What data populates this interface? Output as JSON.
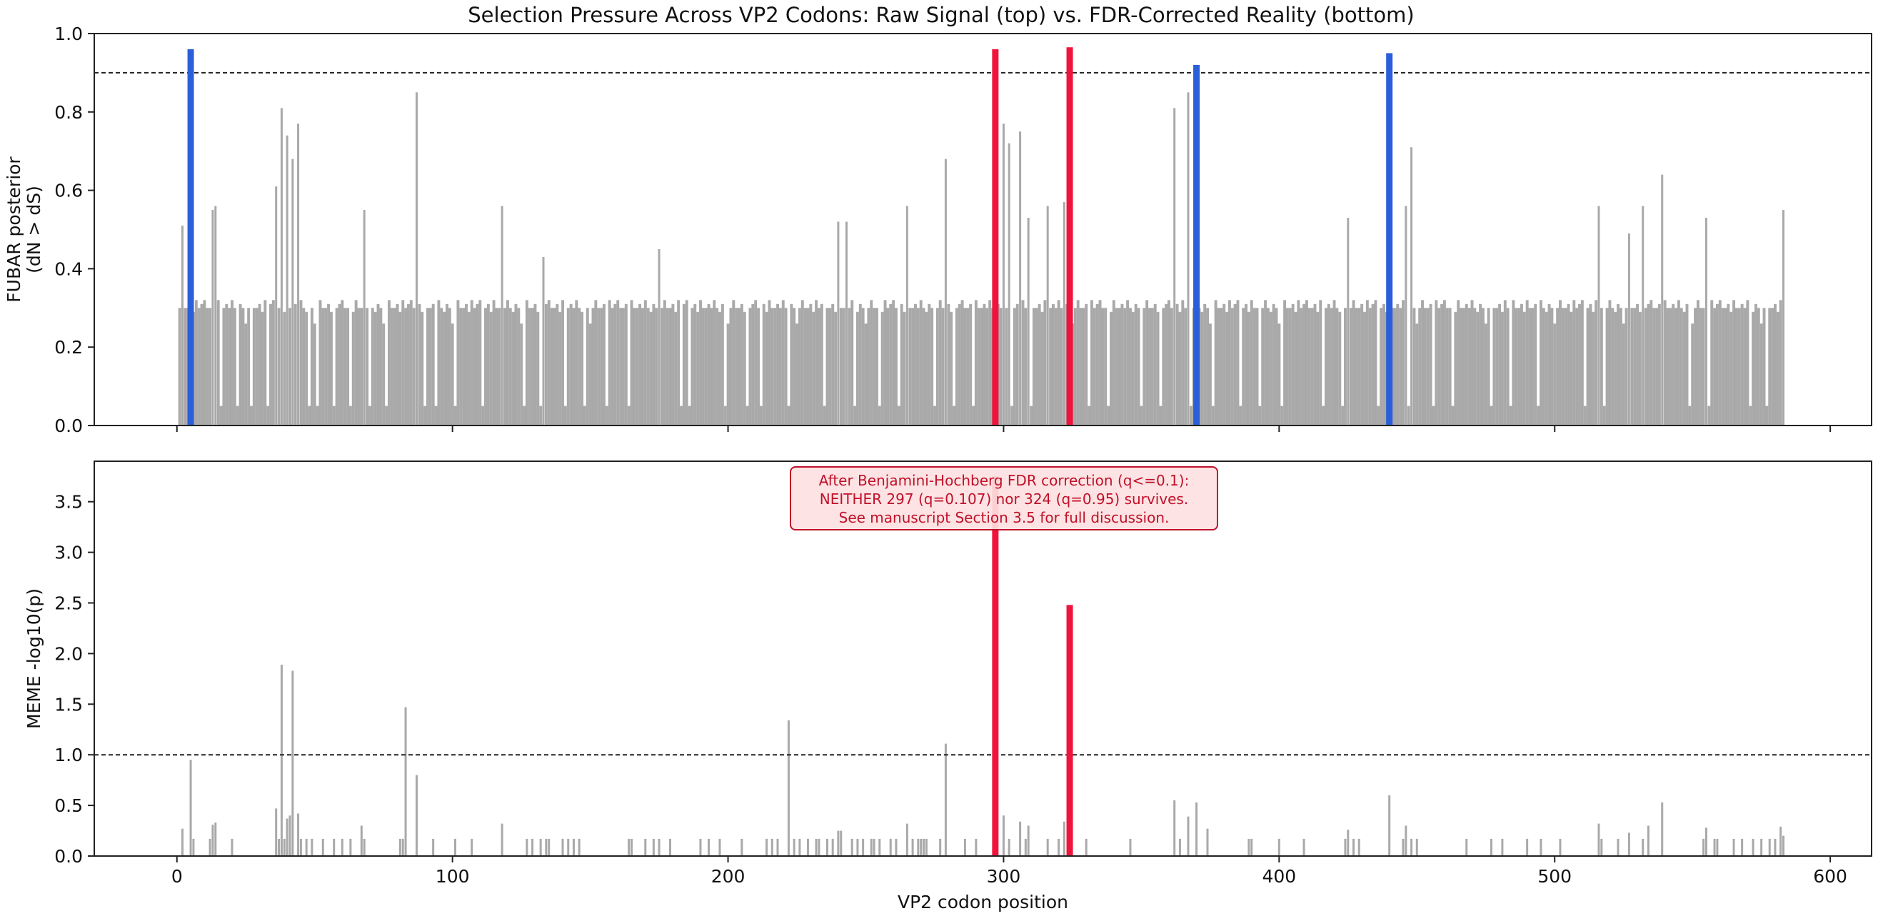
{
  "title": "Selection Pressure Across VP2 Codons: Raw Signal (top) vs. FDR-Corrected Reality (bottom)",
  "colors": {
    "background_bar": "#a9a9a9",
    "highlight_red": "#f0143c",
    "highlight_blue": "#2b5fd9",
    "threshold_line": "#222222",
    "annotation_text": "#c0102a",
    "annotation_fill": "#fde1e1",
    "annotation_edge": "#c0102a"
  },
  "chart_data": [
    {
      "type": "bar",
      "panel": "top",
      "ylabel_lines": [
        "FUBAR posterior",
        "(dN > dS)"
      ],
      "xlabel": "",
      "xlim": [
        -30,
        615
      ],
      "ylim": [
        0,
        1.0
      ],
      "xticks": [
        0,
        100,
        200,
        300,
        400,
        500,
        600
      ],
      "yticks": [
        0.0,
        0.2,
        0.4,
        0.6,
        0.8,
        1.0
      ],
      "ytick_labels": [
        "0.0",
        "0.2",
        "0.4",
        "0.6",
        "0.8",
        "1.0"
      ],
      "threshold": 0.9,
      "background": {
        "x_range": [
          1,
          583
        ],
        "baseline": [
          0.26,
          0.3,
          0.32,
          0.3,
          0.3,
          0.31,
          0.29,
          0.32,
          0.3,
          0.31,
          0.32,
          0.3,
          0.3,
          0.31,
          0.29,
          0.32,
          0.3,
          0.3,
          0.31,
          0.3,
          0.32,
          0.3,
          0.29,
          0.31,
          0.3
        ],
        "dips": [
          16,
          22,
          27,
          33,
          40,
          48,
          51,
          57,
          63,
          70,
          76,
          90,
          94,
          101,
          111,
          118,
          126,
          132,
          141,
          148,
          156,
          164,
          175,
          183,
          186,
          199,
          207,
          212,
          222,
          235,
          246,
          255,
          262,
          275,
          282,
          289,
          303,
          310,
          316,
          331,
          338,
          350,
          357,
          368,
          376,
          386,
          393,
          401,
          416,
          423,
          436,
          447,
          456,
          463,
          477,
          484,
          494,
          511,
          518,
          527,
          549,
          556,
          571,
          577
        ]
      },
      "peaks": [
        {
          "x": 2,
          "y": 0.51
        },
        {
          "x": 13,
          "y": 0.55
        },
        {
          "x": 14,
          "y": 0.56
        },
        {
          "x": 36,
          "y": 0.61
        },
        {
          "x": 38,
          "y": 0.81
        },
        {
          "x": 40,
          "y": 0.74
        },
        {
          "x": 42,
          "y": 0.68
        },
        {
          "x": 44,
          "y": 0.77
        },
        {
          "x": 68,
          "y": 0.55
        },
        {
          "x": 87,
          "y": 0.85
        },
        {
          "x": 118,
          "y": 0.56
        },
        {
          "x": 133,
          "y": 0.43
        },
        {
          "x": 175,
          "y": 0.45
        },
        {
          "x": 240,
          "y": 0.52
        },
        {
          "x": 243,
          "y": 0.52
        },
        {
          "x": 265,
          "y": 0.56
        },
        {
          "x": 279,
          "y": 0.68
        },
        {
          "x": 300,
          "y": 0.77
        },
        {
          "x": 302,
          "y": 0.72
        },
        {
          "x": 306,
          "y": 0.75
        },
        {
          "x": 309,
          "y": 0.53
        },
        {
          "x": 316,
          "y": 0.56
        },
        {
          "x": 322,
          "y": 0.57
        },
        {
          "x": 362,
          "y": 0.81
        },
        {
          "x": 367,
          "y": 0.85
        },
        {
          "x": 425,
          "y": 0.53
        },
        {
          "x": 446,
          "y": 0.56
        },
        {
          "x": 448,
          "y": 0.71
        },
        {
          "x": 516,
          "y": 0.56
        },
        {
          "x": 527,
          "y": 0.49
        },
        {
          "x": 532,
          "y": 0.56
        },
        {
          "x": 539,
          "y": 0.64
        },
        {
          "x": 555,
          "y": 0.53
        },
        {
          "x": 583,
          "y": 0.55
        }
      ],
      "highlights": [
        {
          "x": 5,
          "y": 0.96,
          "color": "blue"
        },
        {
          "x": 297,
          "y": 0.96,
          "color": "red"
        },
        {
          "x": 324,
          "y": 0.965,
          "color": "red"
        },
        {
          "x": 370,
          "y": 0.92,
          "color": "blue"
        },
        {
          "x": 440,
          "y": 0.95,
          "color": "blue"
        }
      ]
    },
    {
      "type": "bar",
      "panel": "bottom",
      "ylabel": "MEME -log10(p)",
      "xlabel": "VP2 codon position",
      "xlim": [
        -30,
        615
      ],
      "ylim": [
        0,
        3.9
      ],
      "xticks": [
        0,
        100,
        200,
        300,
        400,
        500,
        600
      ],
      "yticks": [
        0.0,
        0.5,
        1.0,
        1.5,
        2.0,
        2.5,
        3.0,
        3.5
      ],
      "ytick_labels": [
        "0.0",
        "0.5",
        "1.0",
        "1.5",
        "2.0",
        "2.5",
        "3.0",
        "3.5"
      ],
      "threshold": 1.0,
      "bars": [
        {
          "x": 2,
          "y": 0.27
        },
        {
          "x": 5,
          "y": 0.95
        },
        {
          "x": 6,
          "y": 0.17
        },
        {
          "x": 12,
          "y": 0.17
        },
        {
          "x": 13,
          "y": 0.31
        },
        {
          "x": 14,
          "y": 0.33
        },
        {
          "x": 20,
          "y": 0.17
        },
        {
          "x": 36,
          "y": 0.47
        },
        {
          "x": 37,
          "y": 0.17
        },
        {
          "x": 38,
          "y": 1.89
        },
        {
          "x": 39,
          "y": 0.17
        },
        {
          "x": 40,
          "y": 0.37
        },
        {
          "x": 41,
          "y": 0.4
        },
        {
          "x": 42,
          "y": 1.83
        },
        {
          "x": 44,
          "y": 0.42
        },
        {
          "x": 45,
          "y": 0.17
        },
        {
          "x": 47,
          "y": 0.17
        },
        {
          "x": 49,
          "y": 0.17
        },
        {
          "x": 53,
          "y": 0.17
        },
        {
          "x": 57,
          "y": 0.17
        },
        {
          "x": 60,
          "y": 0.17
        },
        {
          "x": 63,
          "y": 0.17
        },
        {
          "x": 67,
          "y": 0.3
        },
        {
          "x": 68,
          "y": 0.17
        },
        {
          "x": 81,
          "y": 0.17
        },
        {
          "x": 82,
          "y": 0.17
        },
        {
          "x": 83,
          "y": 1.47
        },
        {
          "x": 87,
          "y": 0.8
        },
        {
          "x": 93,
          "y": 0.17
        },
        {
          "x": 101,
          "y": 0.17
        },
        {
          "x": 107,
          "y": 0.17
        },
        {
          "x": 118,
          "y": 0.32
        },
        {
          "x": 127,
          "y": 0.17
        },
        {
          "x": 129,
          "y": 0.17
        },
        {
          "x": 132,
          "y": 0.17
        },
        {
          "x": 134,
          "y": 0.17
        },
        {
          "x": 135,
          "y": 0.17
        },
        {
          "x": 140,
          "y": 0.17
        },
        {
          "x": 142,
          "y": 0.17
        },
        {
          "x": 144,
          "y": 0.17
        },
        {
          "x": 146,
          "y": 0.17
        },
        {
          "x": 164,
          "y": 0.17
        },
        {
          "x": 165,
          "y": 0.17
        },
        {
          "x": 170,
          "y": 0.17
        },
        {
          "x": 173,
          "y": 0.17
        },
        {
          "x": 175,
          "y": 0.17
        },
        {
          "x": 179,
          "y": 0.17
        },
        {
          "x": 190,
          "y": 0.17
        },
        {
          "x": 193,
          "y": 0.17
        },
        {
          "x": 197,
          "y": 0.17
        },
        {
          "x": 205,
          "y": 0.17
        },
        {
          "x": 214,
          "y": 0.17
        },
        {
          "x": 216,
          "y": 0.17
        },
        {
          "x": 218,
          "y": 0.17
        },
        {
          "x": 222,
          "y": 1.34
        },
        {
          "x": 224,
          "y": 0.17
        },
        {
          "x": 226,
          "y": 0.17
        },
        {
          "x": 229,
          "y": 0.17
        },
        {
          "x": 232,
          "y": 0.17
        },
        {
          "x": 233,
          "y": 0.17
        },
        {
          "x": 236,
          "y": 0.17
        },
        {
          "x": 238,
          "y": 0.17
        },
        {
          "x": 240,
          "y": 0.25
        },
        {
          "x": 241,
          "y": 0.25
        },
        {
          "x": 245,
          "y": 0.17
        },
        {
          "x": 247,
          "y": 0.17
        },
        {
          "x": 249,
          "y": 0.17
        },
        {
          "x": 252,
          "y": 0.17
        },
        {
          "x": 253,
          "y": 0.17
        },
        {
          "x": 255,
          "y": 0.17
        },
        {
          "x": 259,
          "y": 0.17
        },
        {
          "x": 261,
          "y": 0.17
        },
        {
          "x": 265,
          "y": 0.32
        },
        {
          "x": 267,
          "y": 0.17
        },
        {
          "x": 269,
          "y": 0.17
        },
        {
          "x": 270,
          "y": 0.17
        },
        {
          "x": 271,
          "y": 0.17
        },
        {
          "x": 272,
          "y": 0.17
        },
        {
          "x": 277,
          "y": 0.17
        },
        {
          "x": 279,
          "y": 1.11
        },
        {
          "x": 286,
          "y": 0.17
        },
        {
          "x": 290,
          "y": 0.17
        },
        {
          "x": 300,
          "y": 0.4
        },
        {
          "x": 302,
          "y": 0.17
        },
        {
          "x": 306,
          "y": 0.34
        },
        {
          "x": 308,
          "y": 0.17
        },
        {
          "x": 309,
          "y": 0.3
        },
        {
          "x": 316,
          "y": 0.17
        },
        {
          "x": 320,
          "y": 0.17
        },
        {
          "x": 322,
          "y": 0.34
        },
        {
          "x": 330,
          "y": 0.17
        },
        {
          "x": 346,
          "y": 0.17
        },
        {
          "x": 362,
          "y": 0.55
        },
        {
          "x": 364,
          "y": 0.17
        },
        {
          "x": 367,
          "y": 0.39
        },
        {
          "x": 370,
          "y": 0.53
        },
        {
          "x": 374,
          "y": 0.27
        },
        {
          "x": 389,
          "y": 0.17
        },
        {
          "x": 390,
          "y": 0.17
        },
        {
          "x": 400,
          "y": 0.17
        },
        {
          "x": 409,
          "y": 0.17
        },
        {
          "x": 424,
          "y": 0.17
        },
        {
          "x": 425,
          "y": 0.26
        },
        {
          "x": 427,
          "y": 0.17
        },
        {
          "x": 429,
          "y": 0.17
        },
        {
          "x": 440,
          "y": 0.6
        },
        {
          "x": 445,
          "y": 0.17
        },
        {
          "x": 446,
          "y": 0.3
        },
        {
          "x": 448,
          "y": 0.17
        },
        {
          "x": 450,
          "y": 0.17
        },
        {
          "x": 468,
          "y": 0.17
        },
        {
          "x": 477,
          "y": 0.17
        },
        {
          "x": 481,
          "y": 0.17
        },
        {
          "x": 490,
          "y": 0.17
        },
        {
          "x": 495,
          "y": 0.17
        },
        {
          "x": 502,
          "y": 0.17
        },
        {
          "x": 516,
          "y": 0.32
        },
        {
          "x": 517,
          "y": 0.17
        },
        {
          "x": 523,
          "y": 0.17
        },
        {
          "x": 527,
          "y": 0.23
        },
        {
          "x": 532,
          "y": 0.17
        },
        {
          "x": 534,
          "y": 0.3
        },
        {
          "x": 539,
          "y": 0.53
        },
        {
          "x": 554,
          "y": 0.17
        },
        {
          "x": 555,
          "y": 0.28
        },
        {
          "x": 558,
          "y": 0.17
        },
        {
          "x": 559,
          "y": 0.17
        },
        {
          "x": 565,
          "y": 0.17
        },
        {
          "x": 568,
          "y": 0.17
        },
        {
          "x": 572,
          "y": 0.17
        },
        {
          "x": 575,
          "y": 0.17
        },
        {
          "x": 578,
          "y": 0.17
        },
        {
          "x": 580,
          "y": 0.17
        },
        {
          "x": 582,
          "y": 0.29
        },
        {
          "x": 583,
          "y": 0.2
        }
      ],
      "highlights": [
        {
          "x": 297,
          "y": 3.75,
          "color": "red"
        },
        {
          "x": 324,
          "y": 2.48,
          "color": "red"
        }
      ],
      "annotation": {
        "lines": [
          "After Benjamini-Hochberg FDR correction (q<=0.1):",
          "NEITHER 297 (q=0.107) nor 324 (q=0.95) survives.",
          "See manuscript Section 3.5 for full discussion."
        ]
      }
    }
  ]
}
